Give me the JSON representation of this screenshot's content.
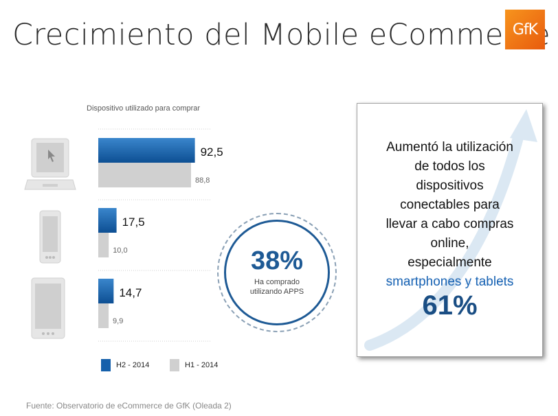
{
  "slide": {
    "title": "Crecimiento del Mobile eCommerce",
    "logo_text": "GfK",
    "source": "Fuente: Observatorio de eCommerce de GfK (Oleada 2)"
  },
  "colors": {
    "h2": "#1560ab",
    "h1": "#d0d0d0",
    "accent": "#1e5a95",
    "logo": "#f07a15"
  },
  "chart_data": {
    "type": "bar",
    "orientation": "horizontal",
    "title": "Dispositivo utilizado para comprar",
    "categories": [
      "computer-icon",
      "smartphone-icon",
      "tablet-icon"
    ],
    "series": [
      {
        "name": "H2 - 2014",
        "values": [
          92.5,
          17.5,
          14.7
        ],
        "labels": [
          "92,5",
          "17,5",
          "14,7"
        ]
      },
      {
        "name": "H1 - 2014",
        "values": [
          88.8,
          10.0,
          9.9
        ],
        "labels": [
          "88,8",
          "10,0",
          "9,9"
        ]
      }
    ],
    "xlim": [
      0,
      100
    ],
    "grid": true,
    "legend": "bottom"
  },
  "circle": {
    "percent": "38%",
    "line1": "Ha comprado",
    "line2": "utilizando APPS"
  },
  "box": {
    "line1": "Aumentó la utilización",
    "line2": "de todos los",
    "line3": "dispositivos",
    "line4": "conectables para",
    "line5": "llevar a cabo compras",
    "line6": "online,",
    "line7": "especialmente",
    "highlight": "smartphones y tablets",
    "percent": "61%"
  }
}
